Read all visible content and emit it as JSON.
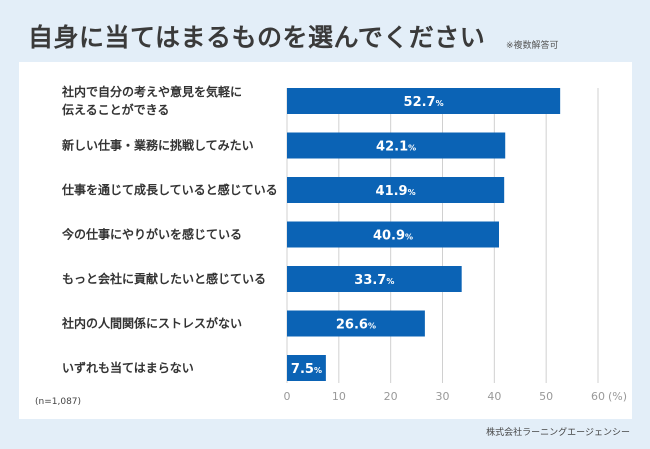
{
  "title": "自身に当てはまるものを選んでください",
  "note": "※複数解答可",
  "sample": "(n=1,087)",
  "source": "株式会社ラーニングエージェンシー",
  "chart_data": {
    "type": "bar",
    "orientation": "horizontal",
    "categories": [
      [
        "社内で自分の考えや意見を気軽に",
        "伝えることができる"
      ],
      [
        "新しい仕事・業務に挑戦してみたい"
      ],
      [
        "仕事を通じて成長していると感じている"
      ],
      [
        "今の仕事にやりがいを感じている"
      ],
      [
        "もっと会社に貢献したいと感じている"
      ],
      [
        "社内の人間関係にストレスがない"
      ],
      [
        "いずれも当てはまらない"
      ]
    ],
    "values": [
      52.7,
      42.1,
      41.9,
      40.9,
      33.7,
      26.6,
      7.5
    ],
    "value_suffix": "%",
    "xticks": [
      0,
      10,
      20,
      30,
      40,
      50,
      60
    ],
    "xunit": "(%)",
    "xlim": [
      0,
      60
    ],
    "grid": true,
    "bar_color": "#0b63b5"
  }
}
